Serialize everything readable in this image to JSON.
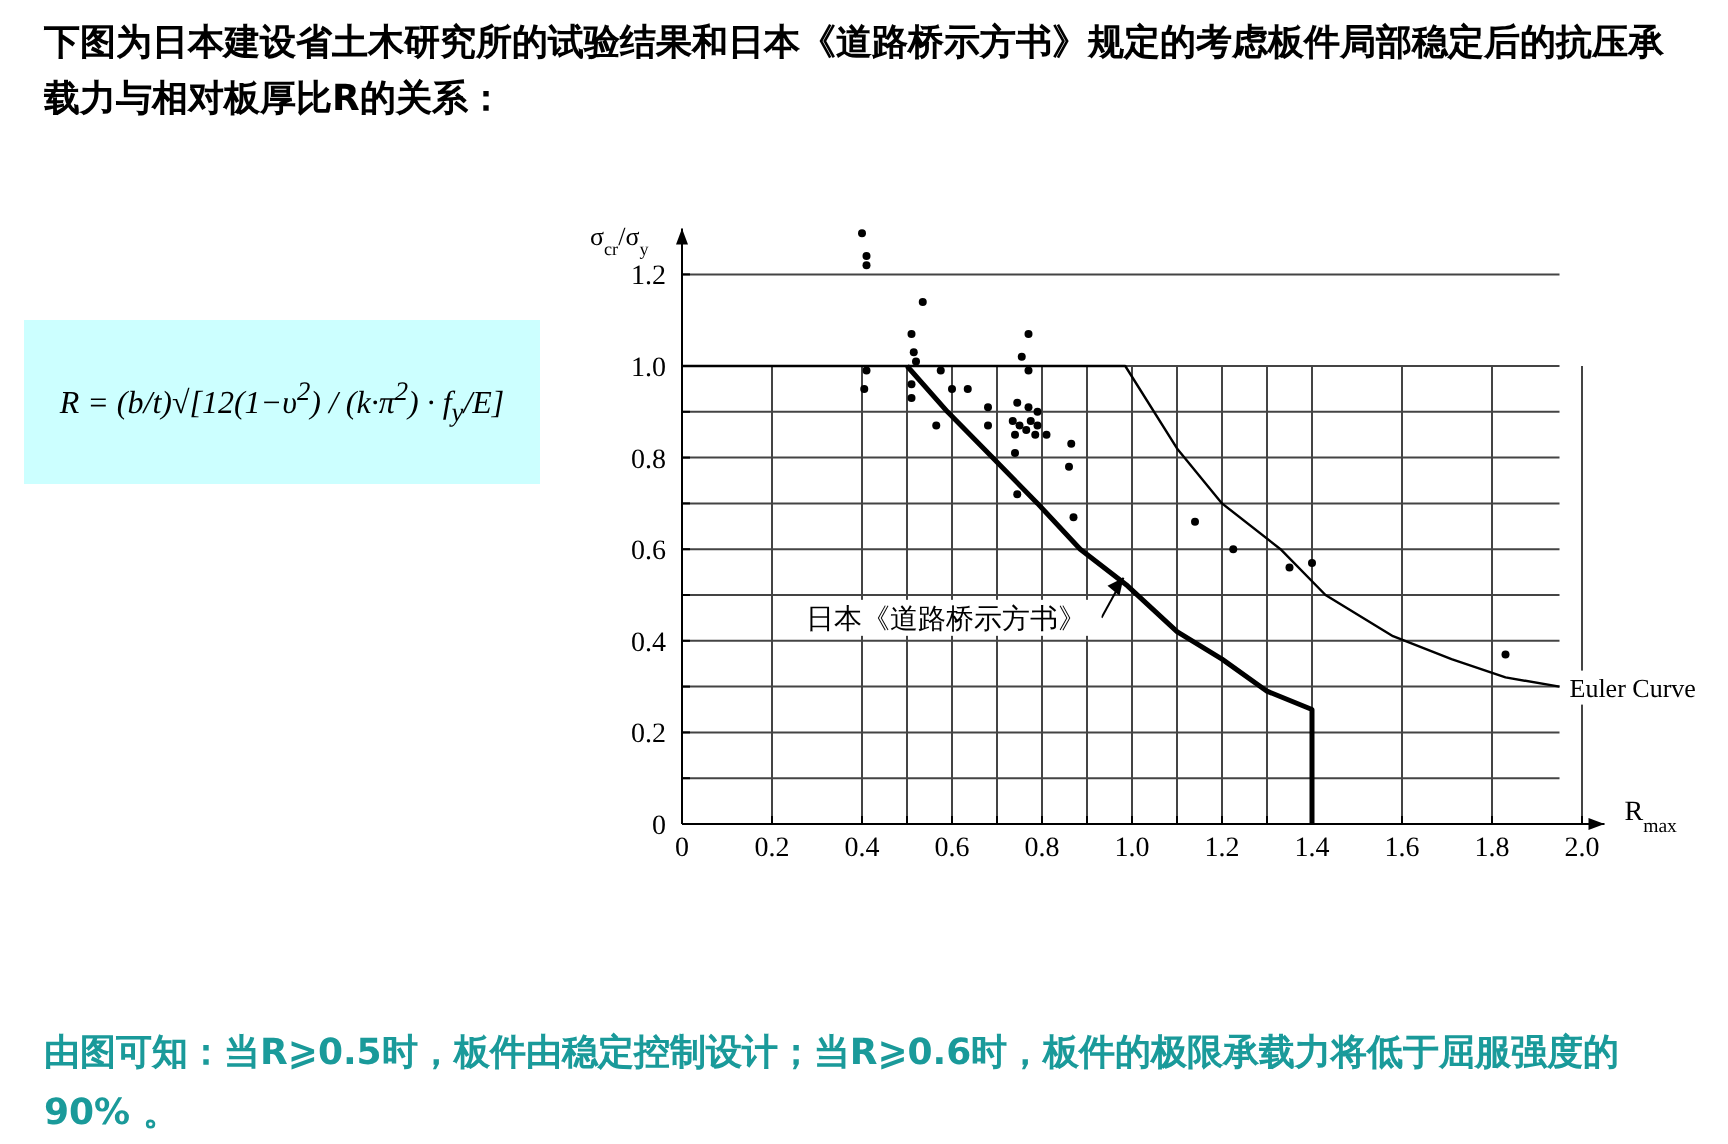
{
  "chart_data": {
    "type": "scatter",
    "title": "下图为日本建设省土木研究所的试验结果和日本《道路桥示方书》规定的考虑板件局部稳定后的抗压承载力与相对板厚比R的关系：",
    "xlabel": "R$_{max}$",
    "ylabel": "σ$_{cr}$/σ$_{y}$",
    "annotations": [
      "R = (b/t)√[12(1−υ$^{2}$) / (k·π$^{2}$) · f$_{y}$/E]",
      "由图可知：当R⩾0.5时，板件由稳定控制设计；当R⩾0.6时，板件的极限承载力将低于屈服强度的 90% 。"
    ],
    "xlim": [
      0,
      2.05
    ],
    "ylim": [
      0,
      1.3
    ],
    "xticks": [
      0,
      0.2,
      0.4,
      {
        "value": 0.5,
        "label": null
      },
      0.6,
      {
        "value": 0.7,
        "label": null
      },
      0.8,
      {
        "value": 0.9,
        "label": null
      },
      {
        "value": 1.0,
        "label": "1.0"
      },
      {
        "value": 1.1,
        "label": null
      },
      1.2,
      {
        "value": 1.3,
        "label": null
      },
      1.4,
      1.6,
      1.8,
      {
        "value": 2.0,
        "label": "2.0"
      }
    ],
    "yticks": [
      0,
      {
        "value": 0.1,
        "label": null
      },
      0.2,
      {
        "value": 0.3,
        "label": null
      },
      0.4,
      {
        "value": 0.5,
        "label": null
      },
      0.6,
      {
        "value": 0.7,
        "label": null
      },
      0.8,
      {
        "value": 0.9,
        "label": null
      },
      {
        "value": 1.0,
        "label": "1.0"
      },
      1.2
    ],
    "grid": true,
    "legend": false,
    "marker": "circle",
    "series": [
      {
        "color": "#000000",
        "x": [
          0.4,
          0.41,
          0.41,
          0.41,
          0.405,
          0.535,
          0.51,
          0.515,
          0.52,
          0.51,
          0.51,
          0.575,
          0.6,
          0.635,
          0.565,
          0.68,
          0.68,
          0.77,
          0.755,
          0.77,
          0.745,
          0.77,
          0.79,
          0.735,
          0.75,
          0.775,
          0.79,
          0.765,
          0.74,
          0.785,
          0.81,
          0.74,
          0.865,
          0.86,
          0.745,
          0.87,
          1.14,
          1.225,
          1.35,
          1.4,
          1.83
        ],
        "values": [
          1.29,
          1.24,
          1.22,
          0.99,
          0.95,
          1.14,
          1.07,
          1.03,
          1.01,
          0.96,
          0.93,
          0.99,
          0.95,
          0.95,
          0.87,
          0.91,
          0.87,
          1.07,
          1.02,
          0.99,
          0.92,
          0.91,
          0.9,
          0.88,
          0.87,
          0.88,
          0.87,
          0.86,
          0.85,
          0.85,
          0.85,
          0.81,
          0.83,
          0.78,
          0.72,
          0.67,
          0.66,
          0.6,
          0.56,
          0.57,
          0.37
        ]
      },
      {
        "type": "line",
        "name": "日本《道路桥示方书》",
        "color": "#000000",
        "marker": "none",
        "x": [
          0.5,
          0.59,
          0.69,
          0.79,
          0.885,
          0.99,
          1.1,
          1.2,
          1.3,
          1.4,
          1.4
        ],
        "values": [
          1.0,
          0.9,
          0.8,
          0.7,
          0.6,
          0.52,
          0.42,
          0.36,
          0.29,
          0.25,
          0
        ]
      },
      {
        "type": "line",
        "name": "Euler Curve",
        "color": "#000000",
        "marker": "none",
        "x": [
          0,
          0.985,
          1.1,
          1.2,
          1.33,
          1.43,
          1.58,
          1.71,
          1.83,
          1.95
        ],
        "values": [
          1.0,
          1.0,
          0.82,
          0.7,
          0.6,
          0.5,
          0.41,
          0.36,
          0.32,
          0.3
        ]
      }
    ]
  }
}
